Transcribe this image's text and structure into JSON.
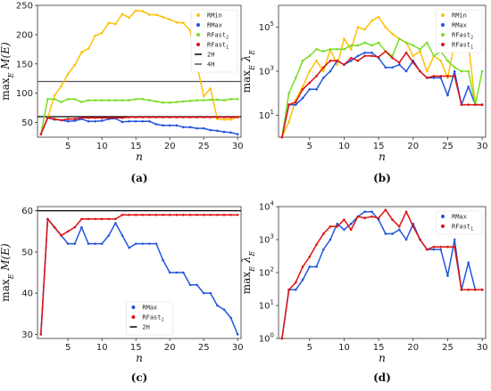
{
  "chart_data": [
    {
      "type": "line",
      "caption": "(a)",
      "ylabel": "max_E M(E)",
      "xlabel": "n",
      "xlim": [
        1,
        30
      ],
      "ylim": [
        25,
        250
      ],
      "xticks": [
        5,
        10,
        15,
        20,
        25,
        30
      ],
      "yticks": [
        50,
        100,
        150,
        200,
        250
      ],
      "log": false,
      "grid": false,
      "legend_position": "top-right",
      "x": [
        1,
        2,
        3,
        4,
        5,
        6,
        7,
        8,
        9,
        10,
        11,
        12,
        13,
        14,
        15,
        16,
        17,
        18,
        19,
        20,
        21,
        22,
        23,
        24,
        25,
        26,
        27,
        28,
        29,
        30
      ],
      "hlines": [
        {
          "name": "2H",
          "value": 60,
          "color": "#000000"
        },
        {
          "name": "4H",
          "value": 120,
          "color": "#555555"
        }
      ],
      "series": [
        {
          "name": "RMin",
          "color": "#ffc000",
          "values": [
            30,
            58,
            96,
            112,
            133,
            148,
            170,
            176,
            198,
            203,
            220,
            218,
            235,
            229,
            241,
            240,
            234,
            234,
            230,
            226,
            221,
            220,
            207,
            148,
            95,
            108,
            56,
            55,
            55,
            60
          ]
        },
        {
          "name": "RMax",
          "color": "#2255dd",
          "values": [
            30,
            58,
            55,
            54,
            52,
            53,
            56,
            52,
            52,
            53,
            56,
            57,
            51,
            52,
            52,
            52,
            52,
            47,
            45,
            45,
            45,
            42,
            42,
            40,
            40,
            37,
            36,
            34,
            33,
            30
          ]
        },
        {
          "name": "RFast_2",
          "color": "#77dd22",
          "values": [
            30,
            90,
            90,
            85,
            90,
            90,
            85,
            88,
            88,
            88,
            88,
            88,
            88,
            88,
            90,
            90,
            88,
            86,
            84,
            84,
            85,
            86,
            87,
            88,
            88,
            89,
            89,
            88,
            90,
            90
          ]
        },
        {
          "name": "RFast_1",
          "color": "#dd1111",
          "values": [
            30,
            58,
            56,
            54,
            56,
            56,
            58,
            58,
            58,
            58,
            58,
            58,
            58,
            59,
            59,
            59,
            59,
            59,
            59,
            59,
            59,
            59,
            59,
            59,
            59,
            59,
            59,
            59,
            59,
            59
          ]
        }
      ]
    },
    {
      "type": "line",
      "caption": "(b)",
      "ylabel": "max_E λ_E",
      "xlabel": "n",
      "xlim": [
        1,
        30
      ],
      "ylim": [
        1,
        1000000
      ],
      "xticks": [
        5,
        10,
        15,
        20,
        25,
        30
      ],
      "yticks": [
        10,
        1000,
        100000
      ],
      "ytick_labels": [
        "10^1",
        "10^3",
        "10^5"
      ],
      "log": true,
      "grid": false,
      "legend_position": "top-right",
      "x": [
        1,
        2,
        3,
        4,
        5,
        6,
        7,
        8,
        9,
        10,
        11,
        12,
        13,
        14,
        15,
        16,
        17,
        18,
        19,
        20,
        21,
        22,
        23,
        24,
        25,
        26,
        27,
        28,
        29,
        30
      ],
      "hlines": [],
      "series": [
        {
          "name": "RMin",
          "color": "#ffc000",
          "values": [
            1,
            5,
            50,
            200,
            1000,
            3000,
            1000,
            10000,
            2000,
            30000,
            10000,
            100000,
            80000,
            200000,
            300000,
            100000,
            50000,
            30000,
            20000,
            5000,
            8000,
            1000,
            5000,
            3000,
            500,
            20000,
            20000,
            20000,
            30,
            30
          ]
        },
        {
          "name": "RMax",
          "color": "#2255dd",
          "values": [
            1,
            30,
            30,
            60,
            150,
            150,
            500,
            1000,
            3000,
            2000,
            3000,
            5000,
            7000,
            7000,
            4000,
            1500,
            1500,
            2000,
            1000,
            3000,
            1000,
            500,
            500,
            500,
            80,
            1000,
            30,
            200,
            30,
            30
          ]
        },
        {
          "name": "RFast_2",
          "color": "#77dd22",
          "values": [
            1,
            100,
            500,
            3000,
            5000,
            10000,
            8000,
            10000,
            10000,
            10000,
            15000,
            15000,
            20000,
            15000,
            20000,
            8000,
            5000,
            30000,
            20000,
            15000,
            10000,
            20000,
            5000,
            8000,
            3000,
            1500,
            1000,
            1000,
            30,
            1000
          ]
        },
        {
          "name": "RFast_1",
          "color": "#dd1111",
          "values": [
            1,
            30,
            40,
            150,
            300,
            600,
            1500,
            3000,
            3000,
            2000,
            4000,
            3000,
            5000,
            5000,
            4500,
            8000,
            4000,
            2500,
            7000,
            2500,
            1000,
            500,
            600,
            600,
            600,
            600,
            30,
            30,
            30,
            30
          ]
        }
      ]
    },
    {
      "type": "line",
      "caption": "(c)",
      "ylabel": "max_E M(E)",
      "xlabel": "n",
      "xlim": [
        1,
        30
      ],
      "ylim": [
        29,
        61
      ],
      "xticks": [
        5,
        10,
        15,
        20,
        25,
        30
      ],
      "yticks": [
        30,
        40,
        50,
        60
      ],
      "log": false,
      "grid": false,
      "legend_position": "bottom-center",
      "x": [
        1,
        2,
        3,
        4,
        5,
        6,
        7,
        8,
        9,
        10,
        11,
        12,
        13,
        14,
        15,
        16,
        17,
        18,
        19,
        20,
        21,
        22,
        23,
        24,
        25,
        26,
        27,
        28,
        29,
        30
      ],
      "hlines": [
        {
          "name": "2H",
          "value": 60,
          "color": "#000000"
        }
      ],
      "series": [
        {
          "name": "RMax",
          "color": "#2255dd",
          "values": [
            30,
            58,
            56,
            54,
            52,
            52,
            56,
            52,
            52,
            52,
            54,
            57,
            54,
            51,
            52,
            52,
            52,
            52,
            48,
            45,
            45,
            45,
            42,
            42,
            40,
            40,
            37,
            36,
            34,
            30
          ]
        },
        {
          "name": "RFast_1",
          "color": "#dd1111",
          "values": [
            30,
            58,
            56,
            54,
            55,
            56,
            58,
            58,
            58,
            58,
            58,
            58,
            59,
            59,
            59,
            59,
            59,
            59,
            59,
            59,
            59,
            59,
            59,
            59,
            59,
            59,
            59,
            59,
            59,
            59
          ]
        }
      ]
    },
    {
      "type": "line",
      "caption": "(d)",
      "ylabel": "max_E λ_E",
      "xlabel": "n",
      "xlim": [
        1,
        30
      ],
      "ylim": [
        1,
        10000
      ],
      "xticks": [
        5,
        10,
        15,
        20,
        25,
        30
      ],
      "yticks": [
        1,
        10,
        100,
        1000,
        10000
      ],
      "ytick_labels": [
        "10^0",
        "10^1",
        "10^2",
        "10^3",
        "10^4"
      ],
      "log": true,
      "grid": false,
      "legend_position": "top-right",
      "x": [
        1,
        2,
        3,
        4,
        5,
        6,
        7,
        8,
        9,
        10,
        11,
        12,
        13,
        14,
        15,
        16,
        17,
        18,
        19,
        20,
        21,
        22,
        23,
        24,
        25,
        26,
        27,
        28,
        29,
        30
      ],
      "hlines": [],
      "series": [
        {
          "name": "RMax",
          "color": "#2255dd",
          "values": [
            1,
            30,
            30,
            60,
            150,
            150,
            500,
            1000,
            3000,
            2000,
            3000,
            5000,
            7000,
            7000,
            4000,
            1500,
            1500,
            2000,
            1000,
            3000,
            1000,
            500,
            500,
            500,
            80,
            1000,
            30,
            200,
            30,
            30
          ]
        },
        {
          "name": "RFast_1",
          "color": "#dd1111",
          "values": [
            1,
            30,
            50,
            150,
            300,
            700,
            1500,
            2500,
            2500,
            4000,
            2000,
            5000,
            4500,
            5000,
            4500,
            8000,
            4000,
            2500,
            7000,
            2500,
            1000,
            500,
            600,
            600,
            600,
            600,
            30,
            30,
            30,
            30
          ]
        }
      ]
    }
  ]
}
